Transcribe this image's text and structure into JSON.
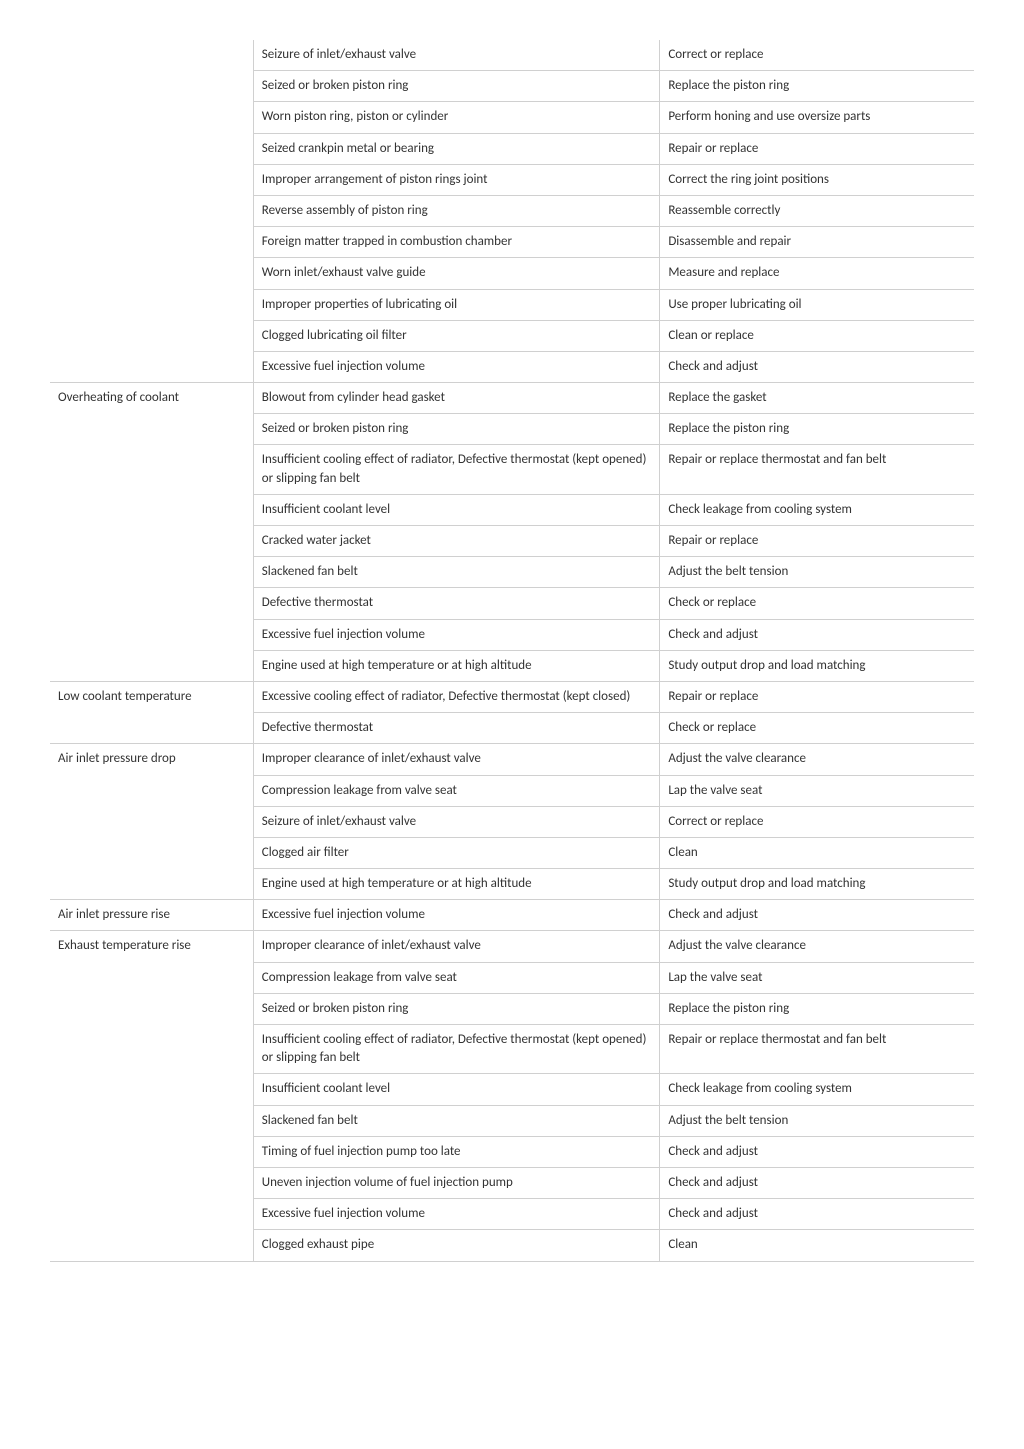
{
  "sections": [
    {
      "label": "",
      "rows": [
        {
          "cause": "Seizure of inlet/exhaust valve",
          "remedy": "Correct or replace"
        },
        {
          "cause": "Seized or broken piston ring",
          "remedy": "Replace the piston ring"
        },
        {
          "cause": "Worn piston ring, piston or cylinder",
          "remedy": "Perform honing and use oversize parts"
        },
        {
          "cause": "Seized crankpin metal or bearing",
          "remedy": "Repair or replace"
        },
        {
          "cause": "Improper arrangement of piston rings joint",
          "remedy": "Correct the ring joint positions"
        },
        {
          "cause": "Reverse assembly of piston ring",
          "remedy": "Reassemble correctly"
        },
        {
          "cause": "Foreign matter trapped in combustion chamber",
          "remedy": "Disassemble and repair"
        },
        {
          "cause": "Worn inlet/exhaust valve guide",
          "remedy": "Measure and replace"
        },
        {
          "cause": "Improper properties of lubricating oil",
          "remedy": "Use proper lubricating oil"
        },
        {
          "cause": "Clogged lubricating oil filter",
          "remedy": "Clean or replace"
        },
        {
          "cause": "Excessive fuel injection volume",
          "remedy": "Check and adjust"
        }
      ]
    },
    {
      "label": "Overheating of coolant",
      "rows": [
        {
          "cause": "Blowout from cylinder head gasket",
          "remedy": "Replace the gasket"
        },
        {
          "cause": "Seized or broken piston ring",
          "remedy": "Replace the piston ring"
        },
        {
          "cause": "Insufficient cooling effect of radiator,\nDefective thermostat (kept opened) or slipping fan belt",
          "remedy": "Repair or replace thermostat and fan belt"
        },
        {
          "cause": "Insufficient coolant level",
          "remedy": "Check leakage from cooling system"
        },
        {
          "cause": "Cracked water jacket",
          "remedy": "Repair or replace"
        },
        {
          "cause": "Slackened fan belt",
          "remedy": "Adjust the belt tension"
        },
        {
          "cause": "Defective thermostat",
          "remedy": "Check or replace"
        },
        {
          "cause": "Excessive fuel injection volume",
          "remedy": "Check and adjust"
        },
        {
          "cause": "Engine used at high temperature or at high altitude",
          "remedy": "Study output drop and load matching"
        }
      ]
    },
    {
      "label": "Low coolant temperature",
      "rows": [
        {
          "cause": "Excessive cooling effect of radiator,\nDefective thermostat (kept closed)",
          "remedy": "Repair or replace"
        },
        {
          "cause": "Defective thermostat",
          "remedy": "Check or replace"
        }
      ]
    },
    {
      "label": "Air inlet pressure drop",
      "rows": [
        {
          "cause": "Improper clearance of inlet/exhaust valve",
          "remedy": "Adjust the valve clearance"
        },
        {
          "cause": "Compression leakage from valve seat",
          "remedy": "Lap the valve seat"
        },
        {
          "cause": "Seizure of inlet/exhaust valve",
          "remedy": "Correct or replace"
        },
        {
          "cause": "Clogged air filter",
          "remedy": "Clean"
        },
        {
          "cause": "Engine used at high temperature or at high altitude",
          "remedy": "Study output drop and load matching"
        }
      ]
    },
    {
      "label": "Air inlet pressure rise",
      "rows": [
        {
          "cause": "Excessive fuel injection volume",
          "remedy": "Check and adjust"
        }
      ]
    },
    {
      "label": "Exhaust temperature rise",
      "rows": [
        {
          "cause": "Improper clearance of inlet/exhaust valve",
          "remedy": "Adjust the valve clearance"
        },
        {
          "cause": "Compression leakage from valve seat",
          "remedy": "Lap the valve seat"
        },
        {
          "cause": "Seized or broken piston ring",
          "remedy": "Replace the piston ring"
        },
        {
          "cause": "Insufficient cooling effect of radiator,\nDefective thermostat (kept opened) or slipping fan belt",
          "remedy": "Repair or replace thermostat and fan belt"
        },
        {
          "cause": "Insufficient coolant level",
          "remedy": "Check leakage from cooling system"
        },
        {
          "cause": "Slackened fan belt",
          "remedy": "Adjust the belt tension"
        },
        {
          "cause": "Timing of fuel injection pump too late",
          "remedy": "Check and adjust"
        },
        {
          "cause": "Uneven injection volume of fuel injection pump",
          "remedy": "Check and adjust"
        },
        {
          "cause": "Excessive fuel injection volume",
          "remedy": "Check and adjust"
        },
        {
          "cause": "Clogged exhaust pipe",
          "remedy": "Clean"
        }
      ]
    }
  ]
}
